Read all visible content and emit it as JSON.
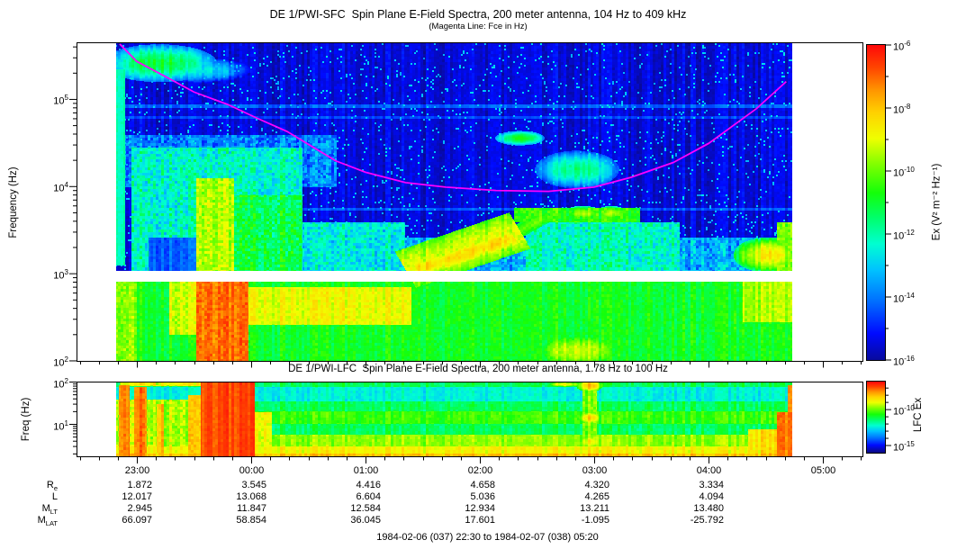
{
  "sfc": {
    "title": "DE 1/PWI-SFC  Spin Plane E-Field Spectra, 200 meter antenna, 104 Hz to 409 kHz",
    "subtitle": "(Magenta Line: Fce in Hz)",
    "ylabel": "Frequency (Hz)",
    "colorbar_label": "Ex (V² m⁻² Hz⁻¹)"
  },
  "lfc": {
    "title": "DE 1/PWI-LFC  Spin Plane E-Field Spectra, 200 meter antenna, 1.78 Hz to 100 Hz",
    "ylabel": "Freq (Hz)",
    "colorbar_label": "LFC Ex"
  },
  "footer": "1984-02-06 (037) 22:30 to 1984-02-07 (038) 05:20",
  "chart_data": {
    "type": "heatmap",
    "time": {
      "axis_start": 22.5,
      "axis_end": 29.346,
      "data_start": 22.82,
      "data_end": 28.73,
      "major_ticks": [
        {
          "hour": 23,
          "label": "23:00"
        },
        {
          "hour": 24,
          "label": "00:00"
        },
        {
          "hour": 25,
          "label": "01:00"
        },
        {
          "hour": 26,
          "label": "02:00"
        },
        {
          "hour": 27,
          "label": "03:00"
        },
        {
          "hour": 28,
          "label": "04:00"
        },
        {
          "hour": 29,
          "label": "05:00"
        }
      ],
      "minor_step_hours": 0.166667
    },
    "colormap": [
      [
        0,
        [
          10,
          10,
          135
        ]
      ],
      [
        0.1,
        [
          0,
          10,
          255
        ]
      ],
      [
        0.2,
        [
          0,
          110,
          255
        ]
      ],
      [
        0.3,
        [
          0,
          195,
          255
        ]
      ],
      [
        0.38,
        [
          0,
          255,
          210
        ]
      ],
      [
        0.46,
        [
          0,
          255,
          110
        ]
      ],
      [
        0.54,
        [
          20,
          255,
          10
        ]
      ],
      [
        0.63,
        [
          130,
          255,
          0
        ]
      ],
      [
        0.71,
        [
          240,
          255,
          0
        ]
      ],
      [
        0.79,
        [
          255,
          210,
          0
        ]
      ],
      [
        0.86,
        [
          255,
          150,
          0
        ]
      ],
      [
        0.93,
        [
          255,
          70,
          0
        ]
      ],
      [
        1,
        [
          255,
          10,
          10
        ]
      ]
    ],
    "fce_color": "#ff00ff",
    "sfc_panel": {
      "freq_log_range": [
        2.0,
        5.65
      ],
      "ytick_exponents": [
        5,
        4,
        3,
        2
      ],
      "value_scale": [
        -16.2,
        -6.0
      ],
      "colorbar_tick_exponents": [
        -6,
        -8,
        -10,
        -12,
        -14,
        -16
      ],
      "colorbar_minor_exponents": [
        -7,
        -9,
        -11,
        -13,
        -15
      ],
      "colorbar_value_range": [
        -6,
        -16
      ],
      "white_gap_lf": [
        2.915,
        3.035
      ],
      "fce_line_t_lf": [
        [
          22.85,
          5.64
        ],
        [
          23.0,
          5.44
        ],
        [
          23.26,
          5.26
        ],
        [
          23.5,
          5.09
        ],
        [
          23.79,
          4.95
        ],
        [
          24.05,
          4.79
        ],
        [
          24.31,
          4.64
        ],
        [
          24.74,
          4.3
        ],
        [
          25.0,
          4.17
        ],
        [
          25.35,
          4.05
        ],
        [
          25.7,
          4.0
        ],
        [
          26.14,
          3.96
        ],
        [
          26.6,
          3.95
        ],
        [
          27.0,
          4.0
        ],
        [
          27.32,
          4.11
        ],
        [
          27.69,
          4.28
        ],
        [
          28.0,
          4.5
        ],
        [
          28.42,
          4.9
        ],
        [
          28.68,
          5.21
        ]
      ],
      "features": [
        {
          "s": "r",
          "t": [
            22.82,
            28.73
          ],
          "f": [
            3.035,
            5.65
          ],
          "v": -15.5,
          "n": 0.35,
          "sp": 0.045,
          "sv": 2.4
        },
        {
          "s": "r",
          "t": [
            22.82,
            28.73
          ],
          "f": [
            2.0,
            2.915
          ],
          "v": -10.9,
          "n": 0.6
        },
        {
          "s": "r",
          "t": [
            22.82,
            22.9
          ],
          "f": [
            3.1,
            5.35
          ],
          "v": -12.0,
          "n": 0.35
        },
        {
          "s": "r",
          "t": [
            22.82,
            23.0
          ],
          "f": [
            2.0,
            2.915
          ],
          "v": -9.7,
          "n": 0.9
        },
        {
          "s": "b",
          "c": [
            23.2,
            5.42
          ],
          "r": [
            0.3,
            0.13
          ],
          "v": -11.0,
          "n": 0.5
        },
        {
          "s": "b",
          "c": [
            23.55,
            5.34
          ],
          "r": [
            0.28,
            0.09
          ],
          "v": -12.6,
          "n": 0.5
        },
        {
          "s": "r",
          "t": [
            22.9,
            24.75
          ],
          "f": [
            4.0,
            4.6
          ],
          "v": -14.0,
          "n": 1.4
        },
        {
          "s": "r",
          "t": [
            22.95,
            24.45
          ],
          "f": [
            3.035,
            4.45
          ],
          "v": -12.3,
          "n": 1.5
        },
        {
          "s": "r",
          "t": [
            23.1,
            23.52
          ],
          "f": [
            3.035,
            3.42
          ],
          "v": -14.3,
          "n": 0.5,
          "m": 1
        },
        {
          "s": "r",
          "t": [
            23.52,
            23.85
          ],
          "f": [
            3.035,
            4.1
          ],
          "v": -9.4,
          "n": 1.1
        },
        {
          "s": "r",
          "t": [
            23.85,
            24.45
          ],
          "f": [
            3.035,
            3.9
          ],
          "v": -11.2,
          "n": 1.3
        },
        {
          "s": "r",
          "t": [
            23.52,
            23.98
          ],
          "f": [
            2.0,
            2.915
          ],
          "v": -7.1,
          "n": 0.7
        },
        {
          "s": "r",
          "t": [
            23.28,
            23.52
          ],
          "f": [
            2.3,
            2.915
          ],
          "v": -9.2,
          "n": 0.9
        },
        {
          "s": "r",
          "t": [
            23.98,
            25.4
          ],
          "f": [
            2.42,
            2.85
          ],
          "v": -8.9,
          "n": 0.6
        },
        {
          "s": "s",
          "p": [
            25.35,
            3.05,
            26.35,
            3.5
          ],
          "w": 0.22,
          "v": -9.1,
          "n": 0.6
        },
        {
          "s": "s",
          "p": [
            25.45,
            3.05,
            26.3,
            3.42
          ],
          "w": 0.09,
          "v": -8.4,
          "n": 0.5
        },
        {
          "s": "r",
          "t": [
            24.45,
            25.35
          ],
          "f": [
            3.035,
            3.6
          ],
          "v": -12.6,
          "n": 1.4
        },
        {
          "s": "b",
          "c": [
            26.85,
            4.2
          ],
          "r": [
            0.22,
            0.13
          ],
          "v": -11.5,
          "n": 0.4
        },
        {
          "s": "b",
          "c": [
            26.35,
            4.56
          ],
          "r": [
            0.13,
            0.05
          ],
          "v": -10.8,
          "n": 0.3
        },
        {
          "s": "r",
          "t": [
            26.3,
            27.4
          ],
          "f": [
            3.6,
            3.76
          ],
          "v": -10.5,
          "n": 0.9
        },
        {
          "s": "s",
          "p": [
            26.28,
            3.45,
            26.6,
            3.68
          ],
          "w": 0.07,
          "v": -10.2,
          "n": 0.5
        },
        {
          "s": "b",
          "c": [
            26.9,
            3.7
          ],
          "r": [
            0.1,
            0.05
          ],
          "v": -9.3,
          "n": 0.4
        },
        {
          "s": "b",
          "c": [
            27.15,
            3.7
          ],
          "r": [
            0.08,
            0.05
          ],
          "v": -9.5,
          "n": 0.4
        },
        {
          "s": "r",
          "t": [
            24.5,
            28.73
          ],
          "f": [
            3.035,
            3.42
          ],
          "v": -13.4,
          "n": 1.5
        },
        {
          "s": "b",
          "c": [
            26.85,
            2.12
          ],
          "r": [
            0.25,
            0.13
          ],
          "v": -9.1,
          "n": 0.5
        },
        {
          "s": "b",
          "c": [
            28.52,
            3.22
          ],
          "r": [
            0.18,
            0.12
          ],
          "v": -8.6,
          "n": 0.45
        },
        {
          "s": "r",
          "t": [
            28.3,
            28.73
          ],
          "f": [
            2.45,
            2.915
          ],
          "v": -9.5,
          "n": 0.6
        },
        {
          "s": "r",
          "t": [
            28.6,
            28.73
          ],
          "f": [
            2.915,
            3.6
          ],
          "v": -10.0,
          "n": 0.9
        },
        {
          "s": "r",
          "t": [
            26.4,
            27.75
          ],
          "f": [
            3.035,
            3.6
          ],
          "v": -12.2,
          "n": 1.4
        },
        {
          "s": "r",
          "t": [
            22.9,
            28.73
          ],
          "f": [
            4.91,
            4.95
          ],
          "v": -14.3,
          "n": 0.25
        },
        {
          "s": "r",
          "t": [
            22.9,
            28.73
          ],
          "f": [
            4.78,
            4.81
          ],
          "v": -14.6,
          "n": 0.25
        },
        {
          "s": "r",
          "t": [
            23.0,
            28.73
          ],
          "f": [
            3.73,
            3.76
          ],
          "v": -14.4,
          "n": 0.25
        },
        {
          "s": "r",
          "t": [
            24.2,
            28.7
          ],
          "f": [
            3.12,
            3.16
          ],
          "v": -13.8,
          "n": 0.3
        }
      ]
    },
    "lfc_panel": {
      "freq_log_range": [
        0.25,
        2.0
      ],
      "ytick_exponents": [
        2,
        1
      ],
      "value_scale": [
        -16.0,
        -6.1
      ],
      "colorbar_tick_exponents": [
        -10,
        -15
      ],
      "colorbar_minor_exponents": [
        -7,
        -8,
        -9,
        -11,
        -12,
        -13,
        -14
      ],
      "colorbar_value_range": [
        -6.1,
        -16
      ],
      "features": [
        {
          "s": "r",
          "t": [
            22.82,
            28.73
          ],
          "f": [
            0.25,
            2.0
          ],
          "v": -11.3,
          "n": 0.5
        },
        {
          "s": "r",
          "t": [
            22.82,
            28.73
          ],
          "f": [
            1.55,
            1.9
          ],
          "v": -12.4,
          "n": 0.45,
          "m": 1
        },
        {
          "s": "r",
          "t": [
            22.82,
            28.73
          ],
          "f": [
            1.03,
            1.32
          ],
          "v": -10.4,
          "n": 0.5
        },
        {
          "s": "r",
          "t": [
            22.82,
            28.73
          ],
          "f": [
            0.5,
            0.78
          ],
          "v": -9.7,
          "n": 0.45
        },
        {
          "s": "r",
          "t": [
            22.82,
            28.73
          ],
          "f": [
            0.25,
            0.5
          ],
          "v": -8.8,
          "n": 0.4
        },
        {
          "s": "r",
          "t": [
            22.82,
            28.73
          ],
          "f": [
            0.25,
            0.33
          ],
          "v": -8.0,
          "n": 0.3
        },
        {
          "s": "r",
          "t": [
            22.82,
            23.6
          ],
          "f": [
            0.25,
            1.6
          ],
          "v": -9.4,
          "n": 1.0
        },
        {
          "s": "r",
          "t": [
            22.84,
            22.94
          ],
          "f": [
            0.25,
            1.95
          ],
          "v": -7.3,
          "n": 0.5
        },
        {
          "s": "r",
          "t": [
            22.98,
            23.09
          ],
          "f": [
            0.25,
            1.9
          ],
          "v": -7.3,
          "n": 0.5
        },
        {
          "s": "r",
          "t": [
            23.17,
            23.24
          ],
          "f": [
            0.25,
            1.5
          ],
          "v": -7.9,
          "n": 0.5
        },
        {
          "s": "r",
          "t": [
            23.45,
            23.56
          ],
          "f": [
            0.25,
            1.7
          ],
          "v": -8.3,
          "n": 0.6
        },
        {
          "s": "r",
          "t": [
            23.56,
            24.03
          ],
          "f": [
            0.25,
            2.0
          ],
          "v": -6.8,
          "n": 0.25
        },
        {
          "s": "r",
          "t": [
            22.85,
            23.6
          ],
          "f": [
            1.92,
            2.0
          ],
          "v": -8.9,
          "n": 1.3
        },
        {
          "s": "r",
          "t": [
            24.03,
            24.18
          ],
          "f": [
            0.25,
            1.3
          ],
          "v": -8.9,
          "n": 0.8
        },
        {
          "s": "r",
          "t": [
            26.9,
            27.02
          ],
          "f": [
            0.3,
            2.0
          ],
          "v": -9.9,
          "n": 0.8
        },
        {
          "s": "b",
          "c": [
            26.96,
            1.93
          ],
          "r": [
            0.07,
            0.09
          ],
          "v": -7.9,
          "n": 0.3
        },
        {
          "s": "b",
          "c": [
            26.96,
            1.17
          ],
          "r": [
            0.07,
            0.1
          ],
          "v": -8.3,
          "n": 0.3
        },
        {
          "s": "b",
          "c": [
            26.96,
            0.6
          ],
          "r": [
            0.08,
            0.12
          ],
          "v": -8.8,
          "n": 0.3
        },
        {
          "s": "r",
          "t": [
            28.35,
            28.6
          ],
          "f": [
            0.25,
            0.9
          ],
          "v": -8.5,
          "n": 0.5
        },
        {
          "s": "r",
          "t": [
            28.6,
            28.73
          ],
          "f": [
            0.25,
            1.3
          ],
          "v": -7.3,
          "n": 0.4
        },
        {
          "s": "r",
          "t": [
            28.69,
            28.73
          ],
          "f": [
            0.25,
            1.95
          ],
          "v": -7.7,
          "n": 0.4
        },
        {
          "s": "b",
          "c": [
            26.75,
            1.96
          ],
          "r": [
            0.1,
            0.04
          ],
          "v": -8.7,
          "n": 0.3
        }
      ]
    },
    "ephemeris": {
      "hours": [
        23,
        24,
        25,
        26,
        27,
        28
      ],
      "rows": [
        {
          "label": "R",
          "sub": "e",
          "values": [
            "1.872",
            "3.545",
            "4.416",
            "4.658",
            "4.320",
            "3.334"
          ]
        },
        {
          "label": "L",
          "sub": "",
          "values": [
            "12.017",
            "13.068",
            "6.604",
            "5.036",
            "4.265",
            "4.094"
          ]
        },
        {
          "label": "M",
          "sub": "LT",
          "values": [
            "2.945",
            "11.847",
            "12.584",
            "12.934",
            "13.211",
            "13.480"
          ]
        },
        {
          "label": "M",
          "sub": "LAT",
          "values": [
            "66.097",
            "58.854",
            "36.045",
            "17.601",
            "-1.095",
            "-25.792"
          ]
        }
      ]
    }
  }
}
